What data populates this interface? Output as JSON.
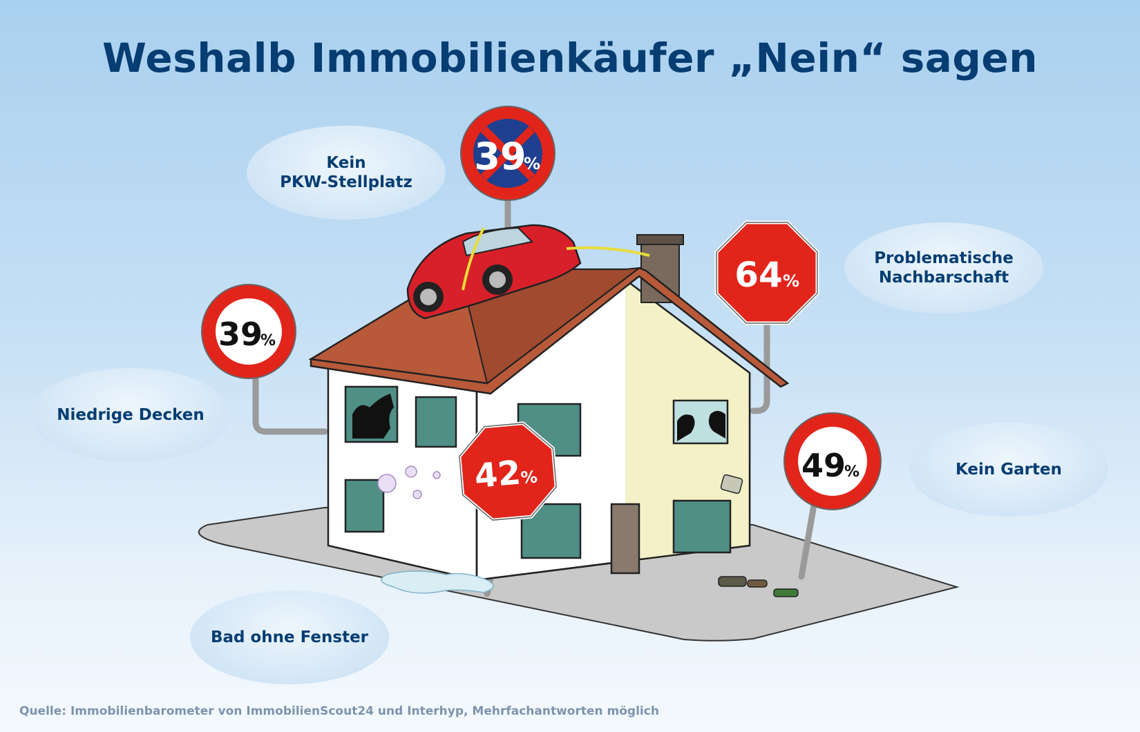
{
  "title": "Weshalb Immobilienkäufer „Nein“ sagen",
  "reasons": [
    {
      "label_lines": [
        "Kein",
        "PKW-Stellplatz"
      ],
      "percent": "39",
      "sign": "no-stopping"
    },
    {
      "label_lines": [
        "Problematische",
        "Nachbarschaft"
      ],
      "percent": "64",
      "sign": "stop"
    },
    {
      "label_lines": [
        "Niedrige Decken"
      ],
      "percent": "39",
      "sign": "prohibition"
    },
    {
      "label_lines": [
        "Kein Garten"
      ],
      "percent": "49",
      "sign": "prohibition"
    },
    {
      "label_lines": [
        "Bad ohne Fenster"
      ],
      "percent": "42",
      "sign": "stop"
    }
  ],
  "percent_symbol": "%",
  "source": "Quelle: Immobilienbarometer von ImmobilienScout24 und Interhyp, Mehrfachantworten möglich",
  "colors": {
    "title": "#063d72",
    "sign_red": "#e1251b",
    "roof": "#b85a3a",
    "house_left": "#ffffff",
    "house_right": "#f4f1c8",
    "ground": "#c8c8c8",
    "car": "#d8202a",
    "no_stopping_blue": "#1f3f8f"
  }
}
